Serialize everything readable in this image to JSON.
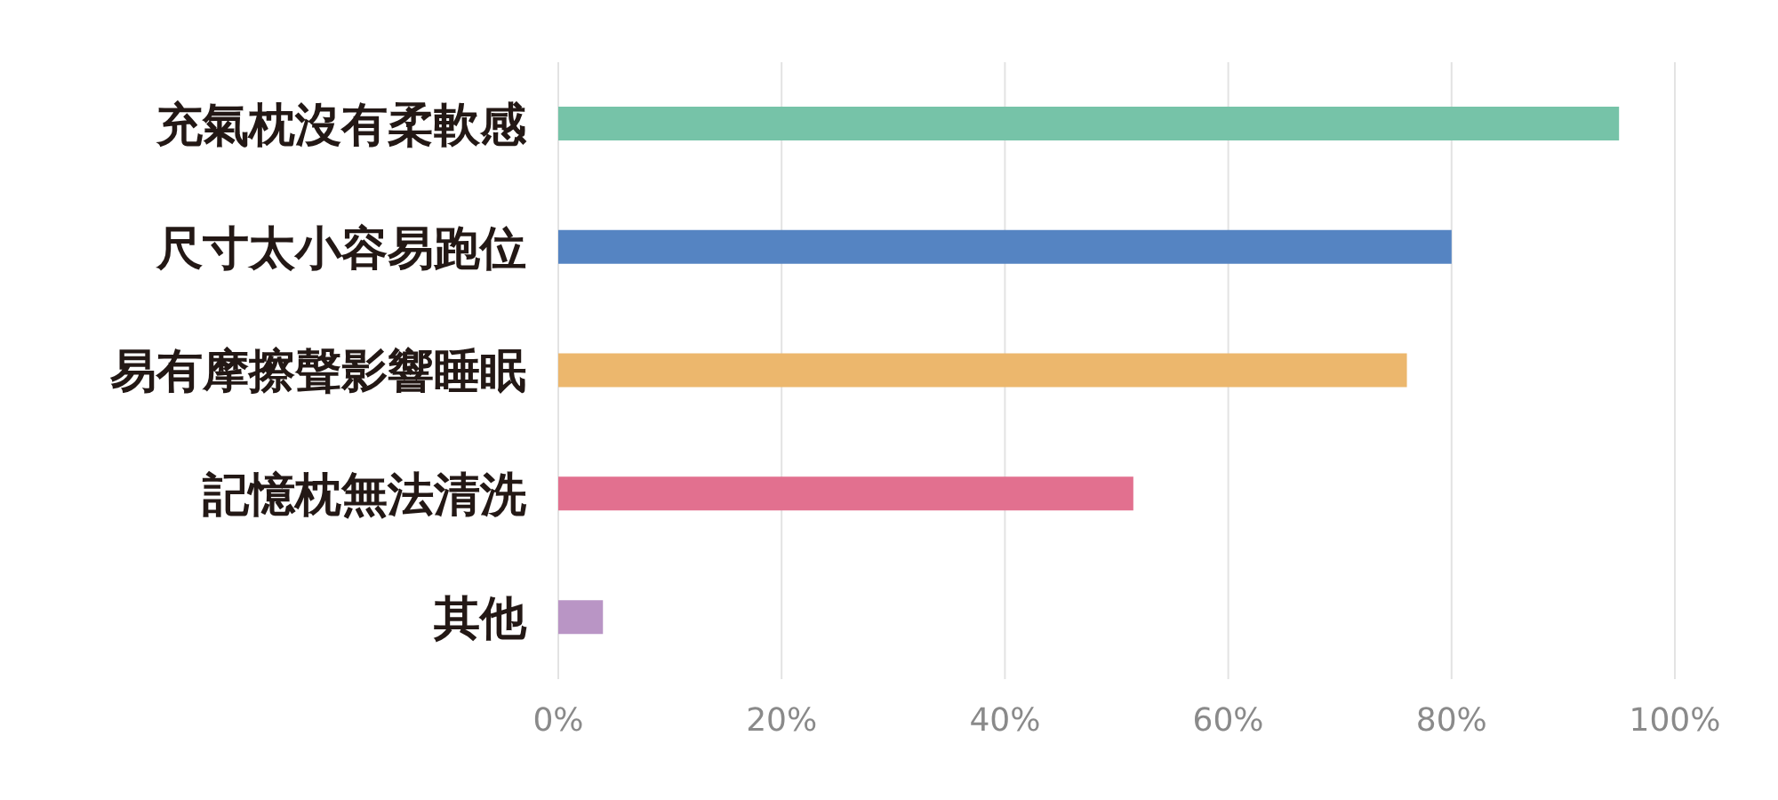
{
  "chart_data": {
    "type": "bar",
    "orientation": "horizontal",
    "categories": [
      "充氣枕沒有柔軟感",
      "尺寸太小容易跑位",
      "易有摩擦聲影響睡眠",
      "記憶枕無法清洗",
      "其他"
    ],
    "values": [
      95,
      80,
      76,
      51.5,
      4
    ],
    "colors": [
      "#76c3a8",
      "#5584c2",
      "#ecb76d",
      "#e2708f",
      "#b995c5"
    ],
    "xlim": [
      0,
      100
    ],
    "xticks": [
      {
        "value": 0,
        "label": "0%"
      },
      {
        "value": 20,
        "label": "20%"
      },
      {
        "value": 40,
        "label": "40%"
      },
      {
        "value": 60,
        "label": "60%"
      },
      {
        "value": 80,
        "label": "80%"
      },
      {
        "value": 100,
        "label": "100%"
      }
    ],
    "grid": "x"
  }
}
